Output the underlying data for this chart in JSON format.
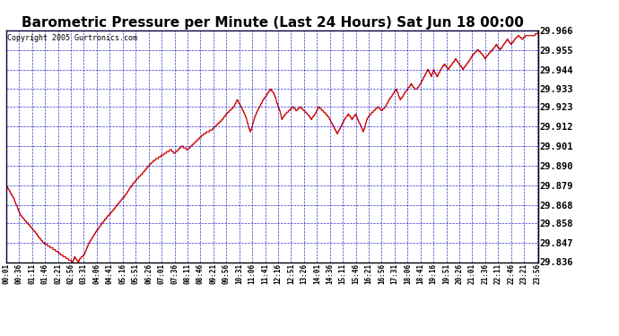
{
  "title": "Barometric Pressure per Minute (Last 24 Hours) Sat Jun 18 00:00",
  "copyright": "Copyright 2005 Gurtronics.com",
  "yticks": [
    29.836,
    29.847,
    29.858,
    29.868,
    29.879,
    29.89,
    29.901,
    29.912,
    29.923,
    29.933,
    29.944,
    29.955,
    29.966
  ],
  "ymin": 29.836,
  "ymax": 29.966,
  "xtick_labels": [
    "00:01",
    "00:36",
    "01:11",
    "01:46",
    "02:21",
    "02:56",
    "03:31",
    "04:06",
    "04:41",
    "05:16",
    "05:51",
    "06:26",
    "07:01",
    "07:36",
    "08:11",
    "08:46",
    "09:21",
    "09:56",
    "10:31",
    "11:06",
    "11:41",
    "12:16",
    "12:51",
    "13:26",
    "14:01",
    "14:36",
    "15:11",
    "15:46",
    "16:21",
    "16:56",
    "17:31",
    "18:06",
    "18:41",
    "19:16",
    "19:51",
    "20:26",
    "21:01",
    "21:36",
    "22:11",
    "22:46",
    "23:21",
    "23:56"
  ],
  "line_color": "#cc0000",
  "grid_color": "#0000cc",
  "bg_color": "#ffffff",
  "title_fontsize": 11,
  "copyright_fontsize": 6,
  "keypoints": [
    [
      0,
      29.879
    ],
    [
      20,
      29.872
    ],
    [
      40,
      29.862
    ],
    [
      70,
      29.855
    ],
    [
      100,
      29.847
    ],
    [
      130,
      29.843
    ],
    [
      150,
      29.84
    ],
    [
      165,
      29.838
    ],
    [
      180,
      29.836
    ],
    [
      185,
      29.839
    ],
    [
      195,
      29.836
    ],
    [
      200,
      29.838
    ],
    [
      210,
      29.84
    ],
    [
      225,
      29.847
    ],
    [
      240,
      29.852
    ],
    [
      260,
      29.858
    ],
    [
      280,
      29.863
    ],
    [
      300,
      29.868
    ],
    [
      320,
      29.873
    ],
    [
      340,
      29.879
    ],
    [
      355,
      29.883
    ],
    [
      370,
      29.886
    ],
    [
      385,
      29.89
    ],
    [
      400,
      29.893
    ],
    [
      415,
      29.895
    ],
    [
      430,
      29.897
    ],
    [
      445,
      29.899
    ],
    [
      455,
      29.897
    ],
    [
      465,
      29.899
    ],
    [
      475,
      29.901
    ],
    [
      490,
      29.899
    ],
    [
      500,
      29.901
    ],
    [
      510,
      29.903
    ],
    [
      520,
      29.905
    ],
    [
      535,
      29.908
    ],
    [
      545,
      29.909
    ],
    [
      555,
      29.91
    ],
    [
      565,
      29.912
    ],
    [
      575,
      29.914
    ],
    [
      585,
      29.916
    ],
    [
      595,
      29.919
    ],
    [
      605,
      29.921
    ],
    [
      615,
      29.923
    ],
    [
      625,
      29.927
    ],
    [
      635,
      29.923
    ],
    [
      645,
      29.919
    ],
    [
      650,
      29.916
    ],
    [
      655,
      29.912
    ],
    [
      660,
      29.909
    ],
    [
      665,
      29.912
    ],
    [
      670,
      29.916
    ],
    [
      675,
      29.919
    ],
    [
      685,
      29.923
    ],
    [
      695,
      29.927
    ],
    [
      705,
      29.93
    ],
    [
      715,
      29.933
    ],
    [
      725,
      29.93
    ],
    [
      730,
      29.927
    ],
    [
      735,
      29.923
    ],
    [
      740,
      29.921
    ],
    [
      745,
      29.916
    ],
    [
      755,
      29.919
    ],
    [
      765,
      29.921
    ],
    [
      775,
      29.923
    ],
    [
      785,
      29.921
    ],
    [
      795,
      29.923
    ],
    [
      805,
      29.921
    ],
    [
      815,
      29.919
    ],
    [
      825,
      29.916
    ],
    [
      835,
      29.919
    ],
    [
      845,
      29.923
    ],
    [
      855,
      29.921
    ],
    [
      865,
      29.919
    ],
    [
      875,
      29.916
    ],
    [
      885,
      29.912
    ],
    [
      895,
      29.908
    ],
    [
      905,
      29.912
    ],
    [
      915,
      29.916
    ],
    [
      925,
      29.919
    ],
    [
      935,
      29.916
    ],
    [
      945,
      29.919
    ],
    [
      950,
      29.916
    ],
    [
      960,
      29.912
    ],
    [
      965,
      29.909
    ],
    [
      970,
      29.912
    ],
    [
      975,
      29.916
    ],
    [
      985,
      29.919
    ],
    [
      995,
      29.921
    ],
    [
      1005,
      29.923
    ],
    [
      1015,
      29.921
    ],
    [
      1025,
      29.923
    ],
    [
      1035,
      29.927
    ],
    [
      1045,
      29.93
    ],
    [
      1055,
      29.933
    ],
    [
      1060,
      29.93
    ],
    [
      1065,
      29.927
    ],
    [
      1075,
      29.93
    ],
    [
      1085,
      29.933
    ],
    [
      1095,
      29.936
    ],
    [
      1105,
      29.933
    ],
    [
      1110,
      29.933
    ],
    [
      1120,
      29.936
    ],
    [
      1130,
      29.94
    ],
    [
      1140,
      29.944
    ],
    [
      1150,
      29.94
    ],
    [
      1155,
      29.944
    ],
    [
      1165,
      29.94
    ],
    [
      1175,
      29.944
    ],
    [
      1185,
      29.947
    ],
    [
      1195,
      29.944
    ],
    [
      1205,
      29.947
    ],
    [
      1215,
      29.95
    ],
    [
      1225,
      29.947
    ],
    [
      1235,
      29.944
    ],
    [
      1245,
      29.947
    ],
    [
      1255,
      29.95
    ],
    [
      1265,
      29.953
    ],
    [
      1275,
      29.955
    ],
    [
      1285,
      29.953
    ],
    [
      1295,
      29.95
    ],
    [
      1305,
      29.953
    ],
    [
      1315,
      29.955
    ],
    [
      1325,
      29.958
    ],
    [
      1335,
      29.955
    ],
    [
      1345,
      29.958
    ],
    [
      1355,
      29.961
    ],
    [
      1365,
      29.958
    ],
    [
      1375,
      29.961
    ],
    [
      1385,
      29.963
    ],
    [
      1395,
      29.961
    ],
    [
      1405,
      29.963
    ],
    [
      1415,
      29.963
    ],
    [
      1425,
      29.963
    ],
    [
      1435,
      29.964
    ],
    [
      1439,
      29.966
    ]
  ]
}
